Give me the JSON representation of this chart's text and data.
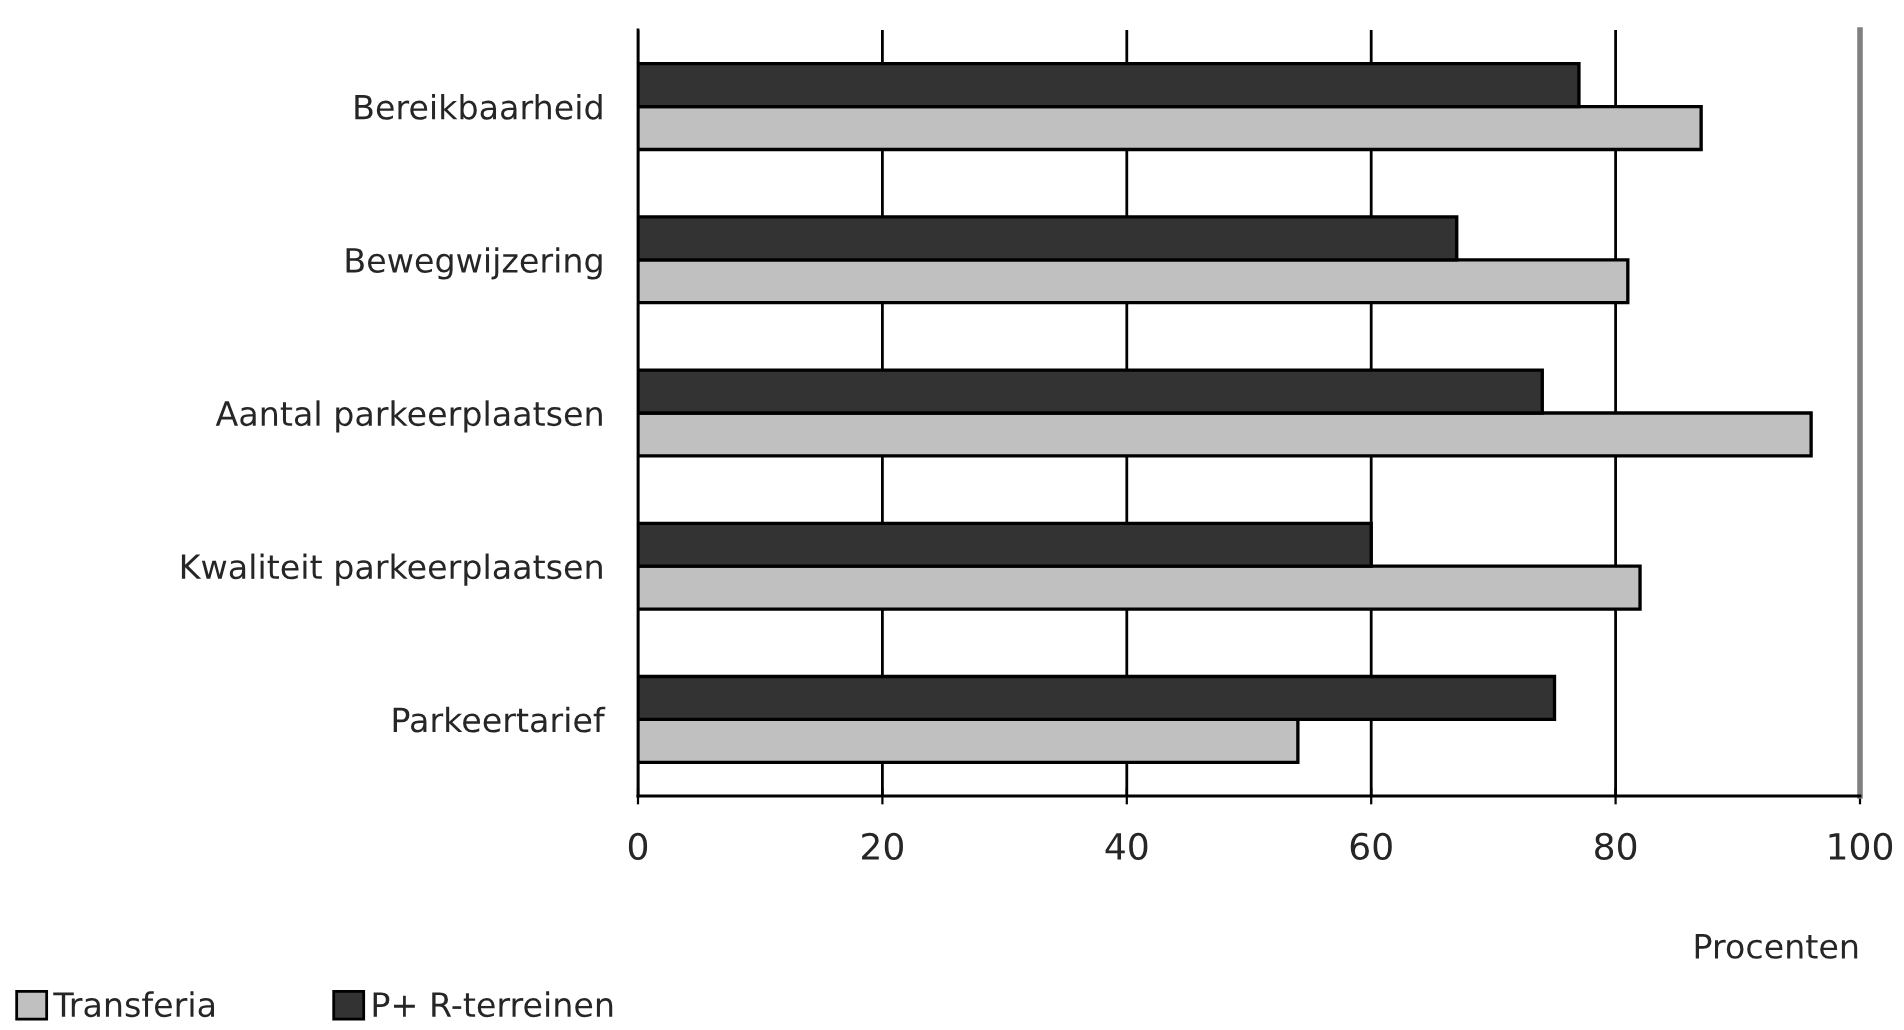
{
  "chart_data": {
    "type": "bar",
    "orientation": "horizontal",
    "xlabel": "Procenten",
    "categories": [
      "Bereikbaarheid",
      "Bewegwijzering",
      "Aantal parkeerplaatsen",
      "Kwaliteit parkeerplaatsen",
      "Parkeertarief"
    ],
    "series": [
      {
        "name": "Transferia",
        "color": "#c0c0c0",
        "values": [
          87,
          81,
          96,
          82,
          54
        ]
      },
      {
        "name": "P+ R-terreinen",
        "color": "#333333",
        "values": [
          77,
          67,
          74,
          60,
          75
        ]
      }
    ],
    "xlim": [
      0,
      100
    ],
    "xticks": [
      0,
      20,
      40,
      60,
      80,
      100
    ],
    "grid": "x",
    "legend": "bottom left"
  }
}
